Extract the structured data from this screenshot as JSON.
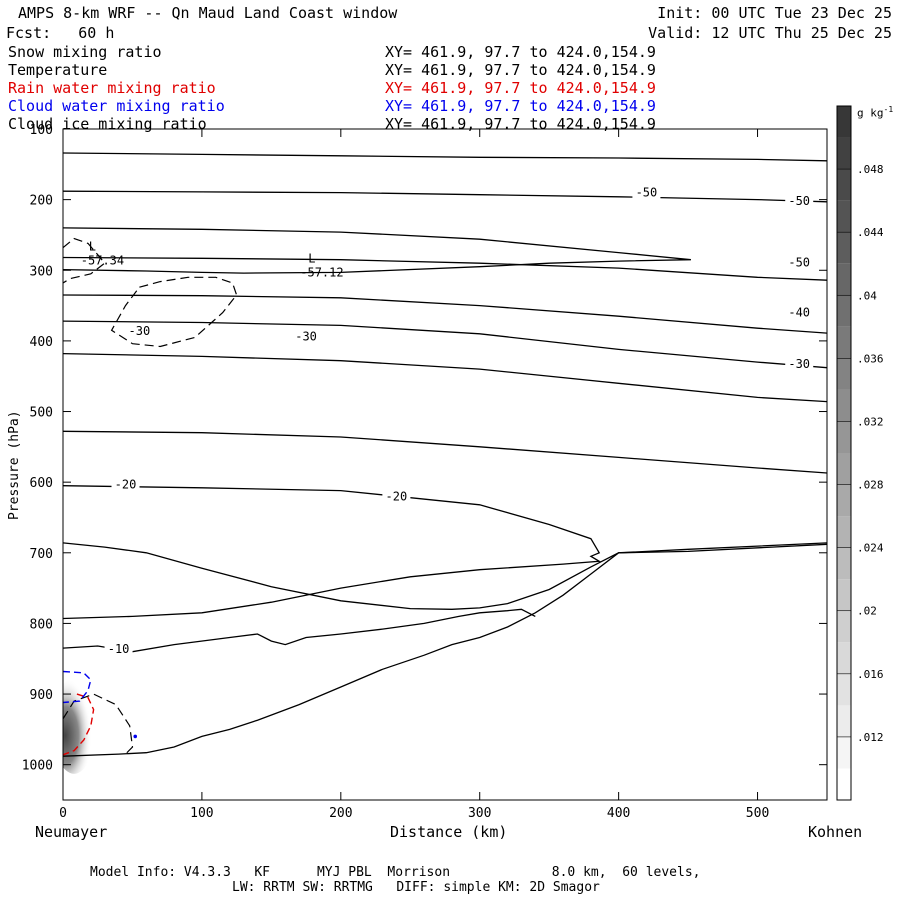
{
  "header": {
    "title": "AMPS 8-km WRF -- Qn Maud Land Coast window",
    "init": "Init: 00 UTC Tue 23 Dec 25",
    "fcst": "Fcst:   60 h",
    "valid": "Valid: 12 UTC Thu 25 Dec 25"
  },
  "legend": [
    {
      "name": "Snow mixing ratio",
      "xy": "XY= 461.9, 97.7 to 424.0,154.9",
      "color": "#000000"
    },
    {
      "name": "Temperature",
      "xy": "XY= 461.9, 97.7 to 424.0,154.9",
      "color": "#000000"
    },
    {
      "name": "Rain water mixing ratio",
      "xy": "XY= 461.9, 97.7 to 424.0,154.9",
      "color": "#e00000"
    },
    {
      "name": "Cloud water mixing ratio",
      "xy": "XY= 461.9, 97.7 to 424.0,154.9",
      "color": "#0000ee"
    },
    {
      "name": "Cloud ice mixing ratio",
      "xy": "XY= 461.9, 97.7 to 424.0,154.9",
      "color": "#000000"
    }
  ],
  "footer": {
    "line1": "Model Info: V4.3.3   KF      MYJ PBL  Morrison             8.0 km,  60 levels,",
    "line2": "LW: RRTM SW: RRTMG   DIFF: simple KM: 2D Smagor"
  },
  "chart_data": {
    "type": "contour",
    "xlabel": "Distance (km)",
    "ylabel": "Pressure (hPa)",
    "x_left_label": "Neumayer",
    "x_right_label": "Kohnen",
    "xlim": [
      0,
      550
    ],
    "ylim": [
      1050,
      100
    ],
    "x_ticks": [
      0,
      100,
      200,
      300,
      400,
      500
    ],
    "y_ticks": [
      100,
      200,
      300,
      400,
      500,
      600,
      700,
      800,
      900,
      1000
    ],
    "colorbar": {
      "unit": "g kg",
      "unit_exp": "-1",
      "ticks": [
        ".012",
        ".016",
        ".02",
        ".024",
        ".028",
        ".032",
        ".036",
        ".04",
        ".044",
        ".048"
      ],
      "values": [
        0.012,
        0.016,
        0.02,
        0.024,
        0.028,
        0.032,
        0.036,
        0.04,
        0.044,
        0.048
      ],
      "min": 0.008,
      "max": 0.052
    },
    "temperature_contours": [
      {
        "level": null,
        "points": [
          [
            0,
            134
          ],
          [
            100,
            136
          ],
          [
            200,
            138
          ],
          [
            300,
            140
          ],
          [
            400,
            141
          ],
          [
            500,
            143
          ],
          [
            550,
            145
          ]
        ]
      },
      {
        "level": -50,
        "points": [
          [
            0,
            188
          ],
          [
            100,
            189
          ],
          [
            200,
            190
          ],
          [
            300,
            193
          ],
          [
            400,
            196
          ],
          [
            500,
            200
          ],
          [
            550,
            203
          ]
        ]
      },
      {
        "level": null,
        "points": [
          [
            0,
            240
          ],
          [
            100,
            242
          ],
          [
            200,
            246
          ],
          [
            300,
            256
          ],
          [
            400,
            275
          ],
          [
            452,
            285
          ],
          [
            400,
            287
          ],
          [
            350,
            290
          ],
          [
            300,
            295
          ],
          [
            200,
            303
          ],
          [
            130,
            304
          ],
          [
            100,
            303
          ],
          [
            60,
            301
          ],
          [
            0,
            299
          ]
        ]
      },
      {
        "level": -50,
        "points": [
          [
            0,
            282
          ],
          [
            100,
            283
          ],
          [
            200,
            285
          ],
          [
            300,
            290
          ],
          [
            400,
            297
          ],
          [
            500,
            310
          ],
          [
            550,
            314
          ]
        ]
      },
      {
        "level": null,
        "points": [
          [
            0,
            335
          ],
          [
            100,
            336
          ],
          [
            200,
            339
          ],
          [
            300,
            350
          ],
          [
            400,
            365
          ],
          [
            500,
            382
          ],
          [
            550,
            389
          ]
        ]
      },
      {
        "level": -40,
        "points": [
          [
            0,
            372
          ],
          [
            100,
            374
          ],
          [
            200,
            378
          ],
          [
            300,
            390
          ],
          [
            400,
            412
          ],
          [
            500,
            430
          ],
          [
            550,
            438
          ]
        ]
      },
      {
        "level": -30,
        "points": [
          [
            0,
            418
          ],
          [
            100,
            422
          ],
          [
            200,
            428
          ],
          [
            300,
            440
          ],
          [
            400,
            460
          ],
          [
            500,
            480
          ],
          [
            550,
            486
          ]
        ]
      },
      {
        "level": -30,
        "points": [
          [
            0,
            528
          ],
          [
            100,
            530
          ],
          [
            200,
            536
          ],
          [
            300,
            550
          ],
          [
            400,
            565
          ],
          [
            500,
            580
          ],
          [
            550,
            587
          ]
        ]
      },
      {
        "level": -20,
        "points": [
          [
            0,
            605
          ],
          [
            100,
            608
          ],
          [
            200,
            612
          ],
          [
            300,
            632
          ],
          [
            350,
            660
          ],
          [
            380,
            680
          ],
          [
            386,
            700
          ],
          [
            380,
            705
          ],
          [
            386,
            712
          ],
          [
            360,
            716
          ],
          [
            300,
            724
          ],
          [
            250,
            734
          ],
          [
            200,
            750
          ],
          [
            150,
            770
          ],
          [
            100,
            785
          ],
          [
            50,
            790
          ],
          [
            0,
            793
          ]
        ]
      },
      {
        "level": -10,
        "points": [
          [
            0,
            686
          ],
          [
            30,
            692
          ],
          [
            60,
            700
          ],
          [
            100,
            722
          ],
          [
            150,
            748
          ],
          [
            200,
            768
          ],
          [
            250,
            779
          ],
          [
            280,
            780
          ],
          [
            300,
            778
          ],
          [
            320,
            772
          ],
          [
            350,
            752
          ],
          [
            380,
            720
          ],
          [
            400,
            700
          ],
          [
            450,
            698
          ],
          [
            550,
            688
          ]
        ]
      },
      {
        "level": -10,
        "points": [
          [
            0,
            835
          ],
          [
            25,
            832
          ],
          [
            50,
            840
          ],
          [
            80,
            830
          ],
          [
            120,
            820
          ],
          [
            140,
            815
          ],
          [
            150,
            825
          ],
          [
            160,
            830
          ],
          [
            175,
            820
          ],
          [
            200,
            815
          ],
          [
            230,
            808
          ],
          [
            260,
            800
          ],
          [
            285,
            790
          ],
          [
            300,
            785
          ],
          [
            320,
            782
          ],
          [
            330,
            780
          ],
          [
            340,
            790
          ]
        ]
      }
    ],
    "low_centers": [
      {
        "label": "L",
        "value": "-57.34",
        "x": 20,
        "y": 283
      },
      {
        "label": "L",
        "value": "-57.12",
        "x": 178,
        "y": 300
      }
    ],
    "terrain": [
      [
        0,
        988
      ],
      [
        40,
        985
      ],
      [
        60,
        983
      ],
      [
        80,
        975
      ],
      [
        100,
        960
      ],
      [
        120,
        950
      ],
      [
        140,
        937
      ],
      [
        170,
        915
      ],
      [
        200,
        890
      ],
      [
        230,
        865
      ],
      [
        260,
        845
      ],
      [
        280,
        830
      ],
      [
        300,
        820
      ],
      [
        320,
        805
      ],
      [
        340,
        785
      ],
      [
        360,
        760
      ],
      [
        380,
        730
      ],
      [
        400,
        700
      ],
      [
        450,
        695
      ],
      [
        550,
        686
      ]
    ],
    "snow_contours": [
      {
        "points": [
          [
            0,
            268
          ],
          [
            8,
            255
          ],
          [
            18,
            262
          ],
          [
            25,
            278
          ],
          [
            30,
            290
          ],
          [
            20,
            305
          ],
          [
            5,
            312
          ],
          [
            0,
            318
          ]
        ]
      },
      {
        "points": [
          [
            55,
            324
          ],
          [
            70,
            316
          ],
          [
            90,
            310
          ],
          [
            110,
            310
          ],
          [
            122,
            318
          ],
          [
            125,
            335
          ],
          [
            115,
            360
          ],
          [
            95,
            395
          ],
          [
            70,
            408
          ],
          [
            50,
            404
          ],
          [
            35,
            385
          ],
          [
            45,
            350
          ],
          [
            55,
            324
          ]
        ]
      },
      {
        "points": [
          [
            0,
            935
          ],
          [
            8,
            910
          ],
          [
            22,
            900
          ],
          [
            38,
            915
          ],
          [
            48,
            945
          ],
          [
            50,
            975
          ],
          [
            45,
            985
          ]
        ]
      }
    ],
    "rain_contour": {
      "points": [
        [
          10,
          900
        ],
        [
          18,
          905
        ],
        [
          22,
          922
        ],
        [
          20,
          945
        ],
        [
          15,
          965
        ],
        [
          8,
          980
        ],
        [
          0,
          986
        ]
      ]
    },
    "cloud_water_contours": [
      {
        "points": [
          [
            0,
            868
          ],
          [
            15,
            870
          ],
          [
            20,
            880
          ],
          [
            18,
            895
          ],
          [
            12,
            910
          ],
          [
            0,
            912
          ]
        ]
      }
    ],
    "cloud_ice_marker": {
      "x": 52,
      "y": 960
    }
  }
}
